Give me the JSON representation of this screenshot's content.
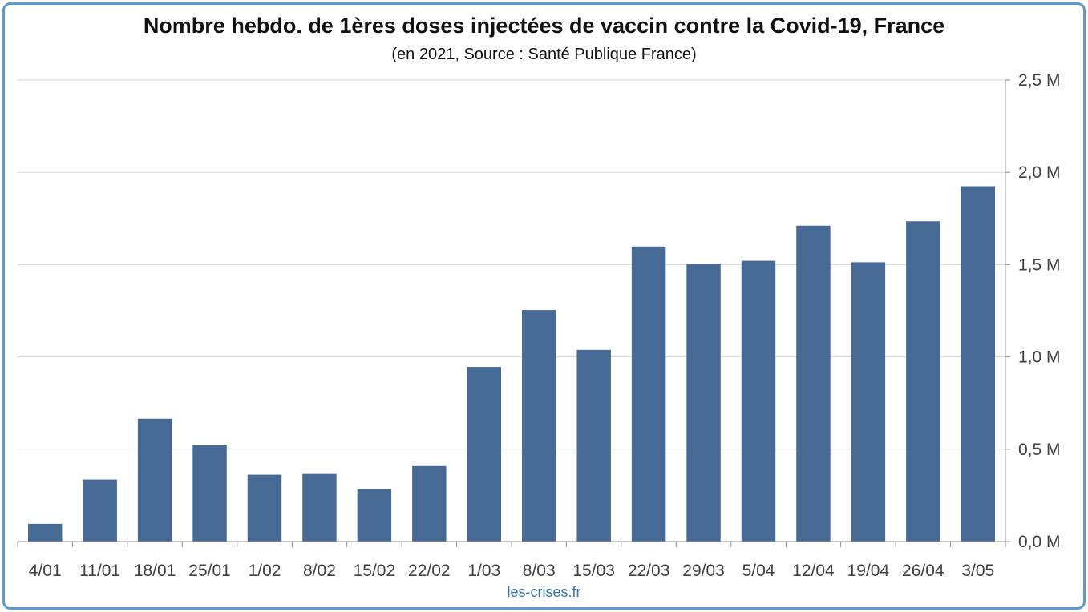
{
  "chart_data": {
    "type": "bar",
    "title": "Nombre hebdo. de 1ères doses injectées de vaccin contre la Covid-19, France",
    "subtitle": "(en 2021, Source : Santé Publique France)",
    "categories": [
      "4/01",
      "11/01",
      "18/01",
      "25/01",
      "1/02",
      "8/02",
      "15/02",
      "22/02",
      "1/03",
      "8/03",
      "15/03",
      "22/03",
      "29/03",
      "5/04",
      "12/04",
      "19/04",
      "26/04",
      "3/05"
    ],
    "series": [
      {
        "values": [
          96000,
          336000,
          665000,
          521000,
          362000,
          366000,
          283000,
          409000,
          946000,
          1254000,
          1038000,
          1598000,
          1504000,
          1521000,
          1711000,
          1513000,
          1735000,
          1925000
        ]
      }
    ],
    "y_ticks": [
      {
        "value": 0,
        "label": "0,0 M"
      },
      {
        "value": 500000,
        "label": "0,5 M"
      },
      {
        "value": 1000000,
        "label": "1,0 M"
      },
      {
        "value": 1500000,
        "label": "1,5 M"
      },
      {
        "value": 2000000,
        "label": "2,0 M"
      },
      {
        "value": 2500000,
        "label": "2,5 M"
      }
    ],
    "ylim": [
      0,
      2500000
    ],
    "y_axis_side": "right",
    "grid": true,
    "legend": "none",
    "bar_color": "#466a94"
  },
  "source_credit": "les-crises.fr"
}
